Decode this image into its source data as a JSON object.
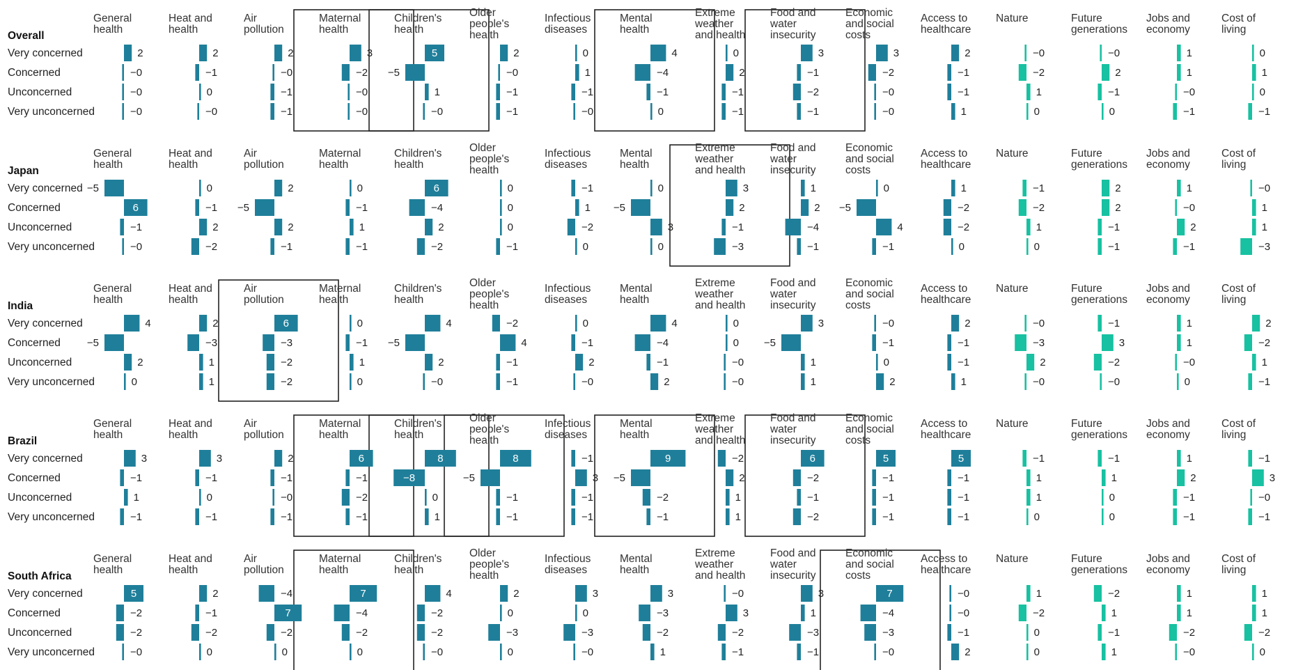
{
  "chart_data": {
    "type": "bar",
    "title": "",
    "xlabel": "",
    "ylabel": "",
    "row_labels": [
      "Very concerned",
      "Concerned",
      "Unconcerned",
      "Very unconcerned"
    ],
    "columns": [
      {
        "label": "General health",
        "label_lines": [
          "General",
          "health"
        ],
        "color": "#1f7f9a"
      },
      {
        "label": "Heat and health",
        "label_lines": [
          "Heat and",
          "health"
        ],
        "color": "#1f7f9a"
      },
      {
        "label": "Air pollution",
        "label_lines": [
          "Air",
          "pollution"
        ],
        "color": "#1f7f9a"
      },
      {
        "label": "Maternal health",
        "label_lines": [
          "Maternal",
          "health"
        ],
        "color": "#1f7f9a"
      },
      {
        "label": "Children's health",
        "label_lines": [
          "Children's",
          "health"
        ],
        "color": "#1f7f9a"
      },
      {
        "label": "Older people's health",
        "label_lines": [
          "Older",
          "people's",
          "health"
        ],
        "color": "#1f7f9a"
      },
      {
        "label": "Infectious diseases",
        "label_lines": [
          "Infectious",
          "diseases"
        ],
        "color": "#1f7f9a"
      },
      {
        "label": "Mental health",
        "label_lines": [
          "Mental",
          "health"
        ],
        "color": "#1f7f9a"
      },
      {
        "label": "Extreme weather and health",
        "label_lines": [
          "Extreme",
          "weather",
          "and health"
        ],
        "color": "#1f7f9a"
      },
      {
        "label": "Food and water insecurity",
        "label_lines": [
          "Food and",
          "water",
          "insecurity"
        ],
        "color": "#1f7f9a"
      },
      {
        "label": "Economic and social costs",
        "label_lines": [
          "Economic",
          "and social",
          "costs"
        ],
        "color": "#1f7f9a"
      },
      {
        "label": "Access to healthcare",
        "label_lines": [
          "Access to",
          "healthcare"
        ],
        "color": "#1f7f9a"
      },
      {
        "label": "Nature",
        "label_lines": [
          "Nature"
        ],
        "color": "#17c1a1"
      },
      {
        "label": "Future generations",
        "label_lines": [
          "Future",
          "generations"
        ],
        "color": "#17c1a1"
      },
      {
        "label": "Jobs and economy",
        "label_lines": [
          "Jobs and",
          "economy"
        ],
        "color": "#17c1a1"
      },
      {
        "label": "Cost of living",
        "label_lines": [
          "Cost of",
          "living"
        ],
        "color": "#17c1a1"
      }
    ],
    "groups": [
      {
        "name": "Overall",
        "highlighted": [
          3,
          4,
          7,
          9
        ],
        "values": [
          [
            2,
            2,
            2,
            3,
            5,
            2,
            0,
            4,
            0,
            3,
            3,
            2,
            0,
            0,
            1,
            0
          ],
          [
            0,
            -1,
            0,
            -2,
            -5,
            0,
            1,
            -4,
            2,
            -1,
            -2,
            -1,
            -2,
            2,
            1,
            1
          ],
          [
            0,
            0,
            -1,
            0,
            1,
            -1,
            -1,
            -1,
            -1,
            -2,
            0,
            -1,
            1,
            -1,
            0,
            0
          ],
          [
            0,
            0,
            -1,
            0,
            0,
            -1,
            0,
            0,
            -1,
            -1,
            0,
            1,
            0,
            0,
            -1,
            -1
          ]
        ]
      },
      {
        "name": "Japan",
        "highlighted": [
          8
        ],
        "values": [
          [
            -5,
            0,
            2,
            0,
            6,
            0,
            -1,
            0,
            3,
            1,
            0,
            1,
            -1,
            2,
            1,
            0
          ],
          [
            6,
            -1,
            -5,
            -1,
            -4,
            0,
            1,
            -5,
            2,
            2,
            -5,
            -2,
            -2,
            2,
            0,
            1
          ],
          [
            -1,
            2,
            2,
            1,
            2,
            0,
            -2,
            3,
            -1,
            -4,
            4,
            -2,
            1,
            -1,
            2,
            1
          ],
          [
            0,
            -2,
            -1,
            -1,
            -2,
            -1,
            0,
            0,
            -3,
            -1,
            -1,
            0,
            0,
            -1,
            -1,
            -3
          ]
        ]
      },
      {
        "name": "India",
        "highlighted": [
          2
        ],
        "values": [
          [
            4,
            2,
            6,
            0,
            4,
            -2,
            0,
            4,
            0,
            3,
            0,
            2,
            0,
            -1,
            1,
            2
          ],
          [
            -5,
            -3,
            -3,
            -1,
            -5,
            4,
            -1,
            -4,
            0,
            -5,
            -1,
            -1,
            -3,
            3,
            1,
            -2
          ],
          [
            2,
            1,
            -2,
            1,
            2,
            -1,
            2,
            -1,
            0,
            1,
            0,
            -1,
            2,
            -2,
            0,
            1
          ],
          [
            0,
            1,
            -2,
            0,
            0,
            -1,
            0,
            2,
            0,
            1,
            2,
            1,
            0,
            0,
            0,
            -1
          ]
        ]
      },
      {
        "name": "Brazil",
        "highlighted": [
          3,
          4,
          5,
          7,
          9
        ],
        "values": [
          [
            3,
            3,
            2,
            6,
            8,
            8,
            -1,
            9,
            -2,
            6,
            5,
            5,
            -1,
            -1,
            1,
            -1
          ],
          [
            -1,
            -1,
            -1,
            -1,
            -8,
            -5,
            3,
            -5,
            2,
            -2,
            -1,
            -1,
            1,
            1,
            2,
            3
          ],
          [
            1,
            0,
            0,
            -2,
            0,
            -1,
            -1,
            -2,
            1,
            -1,
            -1,
            -1,
            1,
            0,
            -1,
            0
          ],
          [
            -1,
            -1,
            -1,
            -1,
            1,
            -1,
            -1,
            -1,
            1,
            -2,
            -1,
            -1,
            0,
            0,
            -1,
            -1
          ]
        ]
      },
      {
        "name": "South Africa",
        "highlighted": [
          3,
          10
        ],
        "values": [
          [
            5,
            2,
            -4,
            7,
            4,
            2,
            3,
            3,
            0,
            3,
            7,
            0,
            1,
            -2,
            1,
            1
          ],
          [
            -2,
            -1,
            7,
            -4,
            -2,
            0,
            0,
            -3,
            3,
            1,
            -4,
            0,
            -2,
            1,
            1,
            1
          ],
          [
            -2,
            -2,
            -2,
            -2,
            -2,
            -3,
            -3,
            -2,
            -2,
            -3,
            -3,
            -1,
            0,
            -1,
            -2,
            -2
          ],
          [
            0,
            0,
            0,
            0,
            0,
            0,
            0,
            1,
            -1,
            -1,
            0,
            2,
            0,
            1,
            0,
            0
          ]
        ]
      }
    ]
  }
}
